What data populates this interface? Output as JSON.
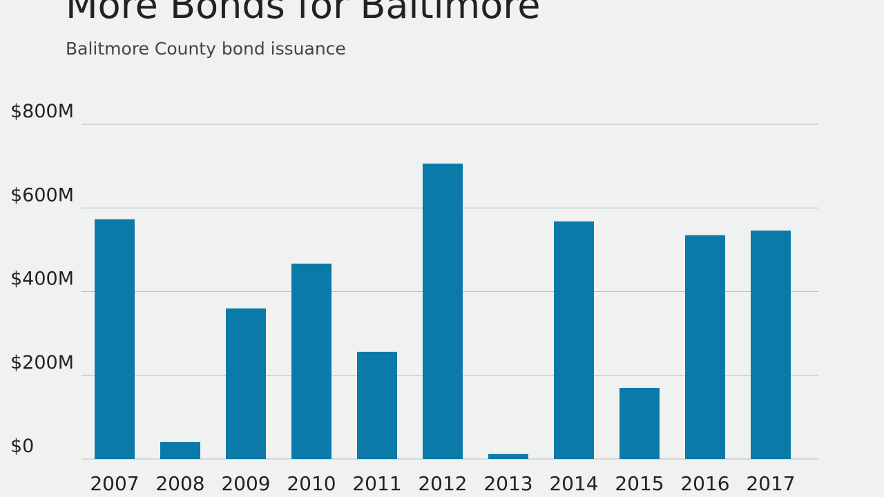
{
  "chart_data": {
    "type": "bar",
    "title": "More Bonds for Baltimore",
    "subtitle": "Balitmore County bond issuance",
    "categories": [
      "2007",
      "2008",
      "2009",
      "2010",
      "2011",
      "2012",
      "2013",
      "2014",
      "2015",
      "2016",
      "2017"
    ],
    "values": [
      573,
      41,
      360,
      467,
      256,
      706,
      12,
      568,
      170,
      535,
      546
    ],
    "color": "#0b7aa8",
    "ylim": [
      0,
      800
    ],
    "yticks": [
      {
        "value": 0,
        "label": "$0"
      },
      {
        "value": 200,
        "label": "$200M"
      },
      {
        "value": 400,
        "label": "$400M"
      },
      {
        "value": 600,
        "label": "$600M"
      },
      {
        "value": 800,
        "label": "$800M"
      }
    ],
    "grid": true
  }
}
